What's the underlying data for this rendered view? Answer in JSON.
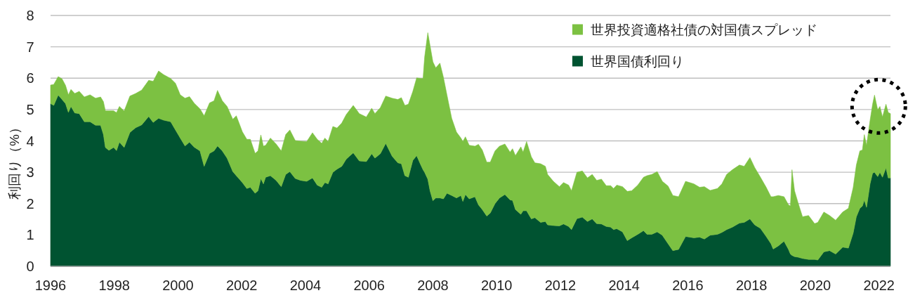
{
  "chart_data": {
    "type": "area",
    "stacked": true,
    "ylabel": "利回り（%）",
    "x": [
      1996.0,
      1996.1,
      1996.24,
      1996.36,
      1996.47,
      1996.56,
      1996.64,
      1996.76,
      1996.9,
      1997.06,
      1997.24,
      1997.41,
      1997.57,
      1997.66,
      1997.72,
      1997.83,
      1997.98,
      1998.07,
      1998.16,
      1998.31,
      1998.49,
      1998.67,
      1998.86,
      1999.08,
      1999.22,
      1999.39,
      1999.55,
      1999.77,
      1999.92,
      2000.07,
      2000.22,
      2000.36,
      2000.51,
      2000.69,
      2000.82,
      2000.99,
      2001.13,
      2001.24,
      2001.39,
      2001.54,
      2001.72,
      2001.83,
      2002.02,
      2002.16,
      2002.27,
      2002.42,
      2002.51,
      2002.6,
      2002.68,
      2002.75,
      2002.9,
      2003.08,
      2003.24,
      2003.38,
      2003.51,
      2003.68,
      2003.85,
      2004.04,
      2004.22,
      2004.37,
      2004.51,
      2004.61,
      2004.71,
      2004.86,
      2004.99,
      2005.14,
      2005.28,
      2005.5,
      2005.69,
      2005.91,
      2006.08,
      2006.18,
      2006.35,
      2006.52,
      2006.72,
      2006.9,
      2007.01,
      2007.12,
      2007.23,
      2007.37,
      2007.49,
      2007.62,
      2007.69,
      2007.74,
      2007.84,
      2007.91,
      2008.0,
      2008.09,
      2008.22,
      2008.33,
      2008.44,
      2008.59,
      2008.74,
      2008.88,
      2008.94,
      2009.02,
      2009.14,
      2009.32,
      2009.43,
      2009.55,
      2009.69,
      2009.8,
      2009.95,
      2010.09,
      2010.26,
      2010.42,
      2010.5,
      2010.59,
      2010.76,
      2010.83,
      2010.94,
      2011.09,
      2011.2,
      2011.38,
      2011.53,
      2011.6,
      2011.78,
      2011.97,
      2012.1,
      2012.26,
      2012.35,
      2012.52,
      2012.69,
      2012.85,
      2013.0,
      2013.14,
      2013.29,
      2013.44,
      2013.58,
      2013.67,
      2013.77,
      2013.95,
      2014.1,
      2014.24,
      2014.43,
      2014.61,
      2014.72,
      2014.87,
      2015.04,
      2015.2,
      2015.38,
      2015.53,
      2015.71,
      2015.93,
      2016.19,
      2016.37,
      2016.52,
      2016.7,
      2016.93,
      2017.07,
      2017.22,
      2017.4,
      2017.62,
      2017.77,
      2017.95,
      2018.1,
      2018.28,
      2018.46,
      2018.61,
      2018.68,
      2018.84,
      2019.02,
      2019.16,
      2019.22,
      2019.27,
      2019.35,
      2019.46,
      2019.6,
      2019.79,
      2019.98,
      2020.08,
      2020.27,
      2020.45,
      2020.64,
      2020.86,
      2021.04,
      2021.19,
      2021.29,
      2021.4,
      2021.48,
      2021.54,
      2021.61,
      2021.72,
      2021.8,
      2021.86,
      2021.96,
      2022.03,
      2022.11,
      2022.22,
      2022.29,
      2022.36
    ],
    "series": [
      {
        "name": "世界国債利回り",
        "color": "#005331",
        "values": [
          5.19,
          5.13,
          5.46,
          5.32,
          5.19,
          4.91,
          5.1,
          4.89,
          4.87,
          4.61,
          4.61,
          4.5,
          4.5,
          4.2,
          3.79,
          3.7,
          3.79,
          3.69,
          3.96,
          3.79,
          4.27,
          4.42,
          4.51,
          4.78,
          4.59,
          4.72,
          4.66,
          4.61,
          4.35,
          4.09,
          3.84,
          3.96,
          3.8,
          3.68,
          3.19,
          3.6,
          3.68,
          3.84,
          3.68,
          3.45,
          3.02,
          2.89,
          2.67,
          2.48,
          2.52,
          2.33,
          2.41,
          2.8,
          2.63,
          2.84,
          2.89,
          2.74,
          2.54,
          2.93,
          3.02,
          2.8,
          2.74,
          2.71,
          2.82,
          2.59,
          2.52,
          2.67,
          2.63,
          3.0,
          3.1,
          3.19,
          3.42,
          3.62,
          3.36,
          3.34,
          3.59,
          3.45,
          3.59,
          3.92,
          3.51,
          3.3,
          3.27,
          2.89,
          2.84,
          3.38,
          3.53,
          3.23,
          3.08,
          3.0,
          2.78,
          2.41,
          2.09,
          2.18,
          2.18,
          2.15,
          2.33,
          2.26,
          2.18,
          2.26,
          2.07,
          2.29,
          2.15,
          2.22,
          1.96,
          1.81,
          1.6,
          1.7,
          2.0,
          2.18,
          2.29,
          2.12,
          2.1,
          1.81,
          1.66,
          1.77,
          1.77,
          1.51,
          1.55,
          1.4,
          1.43,
          1.32,
          1.3,
          1.29,
          1.35,
          1.27,
          1.17,
          1.52,
          1.57,
          1.43,
          1.51,
          1.36,
          1.35,
          1.27,
          1.25,
          1.17,
          1.2,
          1.1,
          0.82,
          0.91,
          1.02,
          1.14,
          1.02,
          1.02,
          1.1,
          0.99,
          0.72,
          0.5,
          0.54,
          0.95,
          0.91,
          0.93,
          0.87,
          0.99,
          1.02,
          1.08,
          1.17,
          1.25,
          1.38,
          1.4,
          1.51,
          1.32,
          1.21,
          0.95,
          0.72,
          0.55,
          0.65,
          0.8,
          0.54,
          0.39,
          0.35,
          0.31,
          0.29,
          0.25,
          0.22,
          0.22,
          0.2,
          0.46,
          0.5,
          0.39,
          0.61,
          0.58,
          1.06,
          1.58,
          1.85,
          1.92,
          2.11,
          1.88,
          2.63,
          2.97,
          3.0,
          2.86,
          3.0,
          2.84,
          3.14,
          2.82,
          2.82
        ]
      },
      {
        "name": "世界投資適格社債の対国債スプレッド",
        "color": "#7cc142",
        "values": [
          0.59,
          0.67,
          0.59,
          0.66,
          0.58,
          0.56,
          0.54,
          0.62,
          0.71,
          0.79,
          0.86,
          0.86,
          0.9,
          1.05,
          1.17,
          1.26,
          1.17,
          1.21,
          1.14,
          1.16,
          1.16,
          1.09,
          1.11,
          1.15,
          1.31,
          1.51,
          1.45,
          1.38,
          1.49,
          1.38,
          1.52,
          1.45,
          1.4,
          1.34,
          1.61,
          1.61,
          1.6,
          1.77,
          1.6,
          1.65,
          1.67,
          1.91,
          1.62,
          1.57,
          1.53,
          1.27,
          1.27,
          1.39,
          1.2,
          1.02,
          1.2,
          1.16,
          1.14,
          1.27,
          1.33,
          1.21,
          1.25,
          1.27,
          1.44,
          1.46,
          1.4,
          1.42,
          1.35,
          1.46,
          1.31,
          1.38,
          1.42,
          1.51,
          1.51,
          1.42,
          1.45,
          1.42,
          1.47,
          1.51,
          1.85,
          2.02,
          2.11,
          2.24,
          2.33,
          2.2,
          2.48,
          2.76,
          2.91,
          3.67,
          4.67,
          4.63,
          4.43,
          4.15,
          4.3,
          3.88,
          3.14,
          2.46,
          2.1,
          1.83,
          1.91,
          1.84,
          1.71,
          1.61,
          1.93,
          1.9,
          1.72,
          1.62,
          1.68,
          1.65,
          1.61,
          1.52,
          1.65,
          1.72,
          2.15,
          1.87,
          2.21,
          1.98,
          1.75,
          1.87,
          1.76,
          1.61,
          1.41,
          1.25,
          1.32,
          1.32,
          1.24,
          1.48,
          1.47,
          1.39,
          1.42,
          1.38,
          1.43,
          1.3,
          1.32,
          1.31,
          1.39,
          1.44,
          1.57,
          1.5,
          1.57,
          1.7,
          1.87,
          1.91,
          1.92,
          1.72,
          1.84,
          1.76,
          1.68,
          1.76,
          1.72,
          1.59,
          1.67,
          1.43,
          1.46,
          1.55,
          1.76,
          1.83,
          1.85,
          1.79,
          1.96,
          1.83,
          1.63,
          1.57,
          1.5,
          1.67,
          1.61,
          1.42,
          1.42,
          1.53,
          2.73,
          2.1,
          1.74,
          1.33,
          1.4,
          1.14,
          1.2,
          1.27,
          1.12,
          1.08,
          1.12,
          1.27,
          1.45,
          1.65,
          1.83,
          1.79,
          2.09,
          1.98,
          2.02,
          2.2,
          2.46,
          2.13,
          2.1,
          1.92,
          2.03,
          2.09,
          2.05
        ]
      }
    ],
    "xlim": [
      1996,
      2022.36
    ],
    "xticks": [
      1996,
      1998,
      2000,
      2002,
      2004,
      2006,
      2008,
      2010,
      2012,
      2014,
      2016,
      2018,
      2020,
      2022
    ],
    "ylim": [
      0,
      8
    ],
    "yticks": [
      0,
      1,
      2,
      3,
      4,
      5,
      6,
      7,
      8
    ],
    "grid": "y",
    "legend": "top right"
  }
}
